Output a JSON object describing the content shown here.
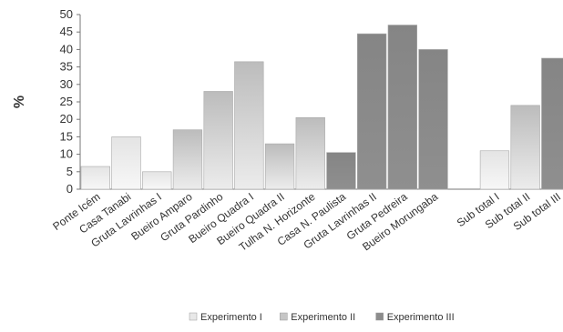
{
  "chart_data": {
    "type": "bar",
    "ylabel": "%",
    "ylim": [
      0,
      50
    ],
    "yticks": [
      0,
      5,
      10,
      15,
      20,
      25,
      30,
      35,
      40,
      45,
      50
    ],
    "grid": false,
    "legend_position": "bottom-right",
    "categories": [
      "Ponte Icém",
      "Casa Tanabi",
      "Gruta Lavrinhas I",
      "Bueiro Amparo",
      "Gruta Pardinho",
      "Bueiro Quadra I",
      "Bueiro Quadra II",
      "Tulha N. Horizonte",
      "Casa N. Paulista",
      "Gruta Lavrinhas II",
      "Gruta Pedreira",
      "Bueiro Morungaba",
      "",
      "Sub total I",
      "Sub total II",
      "Sub total III"
    ],
    "series": [
      {
        "name": "Experimento I",
        "color": "#e8e8e8",
        "values": [
          6.5,
          15,
          5,
          null,
          null,
          null,
          null,
          null,
          null,
          null,
          null,
          null,
          null,
          11,
          null,
          null
        ]
      },
      {
        "name": "Experimento II",
        "color": "#c6c6c6",
        "values": [
          null,
          null,
          null,
          17,
          28,
          36.5,
          13,
          20.5,
          null,
          null,
          null,
          null,
          null,
          null,
          24,
          null
        ]
      },
      {
        "name": "Experimento III",
        "color": "#8c8c8c",
        "values": [
          null,
          null,
          null,
          null,
          null,
          null,
          null,
          null,
          10.5,
          44.5,
          47,
          40,
          null,
          null,
          null,
          37.5
        ]
      }
    ]
  }
}
